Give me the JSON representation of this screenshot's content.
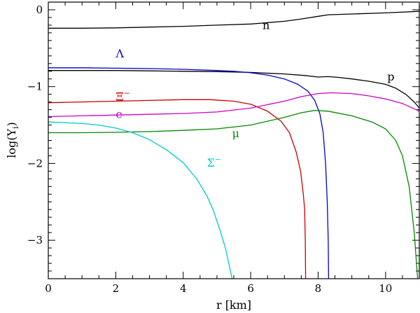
{
  "chart_data": {
    "type": "line",
    "title": "",
    "xlabel": "r [km]",
    "ylabel": "log(Y",
    "ylabel_sub": "i",
    "ylabel_close": ")",
    "xlim": [
      0,
      11
    ],
    "ylim": [
      -3.5,
      0.1
    ],
    "grid": false,
    "x_ticks_major": [
      0,
      2,
      4,
      6,
      8,
      10
    ],
    "x_tick_labels": [
      "0",
      "2",
      "4",
      "6",
      "8",
      "10"
    ],
    "x_ticks_minor_step": 0.5,
    "y_ticks_major": [
      0,
      -1,
      -2,
      -3
    ],
    "y_tick_labels": [
      "0",
      "−1",
      "−2",
      "−3"
    ],
    "y_ticks_minor_step": 0.1,
    "series": [
      {
        "name": "n",
        "color": "#000000",
        "label_at": [
          6.35,
          -0.25
        ],
        "points": [
          [
            0,
            -0.24
          ],
          [
            1,
            -0.24
          ],
          [
            2,
            -0.235
          ],
          [
            3,
            -0.225
          ],
          [
            4,
            -0.215
          ],
          [
            5,
            -0.2
          ],
          [
            6,
            -0.185
          ],
          [
            7,
            -0.15
          ],
          [
            7.5,
            -0.12
          ],
          [
            8,
            -0.085
          ],
          [
            8.3,
            -0.065
          ],
          [
            9,
            -0.055
          ],
          [
            10,
            -0.04
          ],
          [
            11,
            -0.02
          ]
        ]
      },
      {
        "name": "p",
        "color": "#000000",
        "label_at": [
          10.05,
          -0.92
        ],
        "points": [
          [
            0,
            -0.79
          ],
          [
            1,
            -0.79
          ],
          [
            2,
            -0.79
          ],
          [
            3,
            -0.795
          ],
          [
            4,
            -0.8
          ],
          [
            5,
            -0.805
          ],
          [
            6,
            -0.815
          ],
          [
            7,
            -0.835
          ],
          [
            7.6,
            -0.855
          ],
          [
            8,
            -0.875
          ],
          [
            8.3,
            -0.87
          ],
          [
            8.6,
            -0.88
          ],
          [
            9,
            -0.9
          ],
          [
            9.5,
            -0.93
          ],
          [
            10,
            -0.97
          ],
          [
            10.3,
            -1.02
          ],
          [
            10.6,
            -1.1
          ],
          [
            10.85,
            -1.2
          ],
          [
            11,
            -1.28
          ]
        ]
      },
      {
        "name": "Λ",
        "color": "#0000cc",
        "label_at": [
          2.0,
          -0.62
        ],
        "points": [
          [
            0,
            -0.755
          ],
          [
            1,
            -0.755
          ],
          [
            2,
            -0.76
          ],
          [
            3,
            -0.765
          ],
          [
            4,
            -0.775
          ],
          [
            5,
            -0.79
          ],
          [
            5.5,
            -0.8
          ],
          [
            6,
            -0.82
          ],
          [
            6.5,
            -0.85
          ],
          [
            7,
            -0.9
          ],
          [
            7.4,
            -0.97
          ],
          [
            7.7,
            -1.06
          ],
          [
            7.9,
            -1.18
          ],
          [
            8.05,
            -1.35
          ],
          [
            8.15,
            -1.6
          ],
          [
            8.22,
            -2.0
          ],
          [
            8.27,
            -2.5
          ],
          [
            8.3,
            -3.0
          ],
          [
            8.31,
            -3.5
          ]
        ]
      },
      {
        "name": "Ξ",
        "name_sup": "−",
        "color": "#cc0000",
        "label_at": [
          2.0,
          -1.18
        ],
        "points": [
          [
            0,
            -1.21
          ],
          [
            1,
            -1.2
          ],
          [
            2,
            -1.19
          ],
          [
            3,
            -1.18
          ],
          [
            4,
            -1.17
          ],
          [
            4.8,
            -1.17
          ],
          [
            5.5,
            -1.19
          ],
          [
            6,
            -1.23
          ],
          [
            6.5,
            -1.32
          ],
          [
            6.9,
            -1.45
          ],
          [
            7.15,
            -1.6
          ],
          [
            7.35,
            -1.85
          ],
          [
            7.48,
            -2.1
          ],
          [
            7.56,
            -2.4
          ],
          [
            7.6,
            -2.6
          ],
          [
            7.62,
            -3.0
          ],
          [
            7.63,
            -3.5
          ]
        ]
      },
      {
        "name": "e",
        "color": "#cc00cc",
        "label_at": [
          2.0,
          -1.41
        ],
        "points": [
          [
            0,
            -1.39
          ],
          [
            1,
            -1.38
          ],
          [
            2,
            -1.37
          ],
          [
            3,
            -1.36
          ],
          [
            4,
            -1.35
          ],
          [
            5,
            -1.33
          ],
          [
            6,
            -1.28
          ],
          [
            7,
            -1.19
          ],
          [
            7.5,
            -1.13
          ],
          [
            8,
            -1.09
          ],
          [
            8.4,
            -1.08
          ],
          [
            9,
            -1.09
          ],
          [
            9.5,
            -1.12
          ],
          [
            10,
            -1.16
          ],
          [
            10.5,
            -1.22
          ],
          [
            11,
            -1.32
          ]
        ]
      },
      {
        "name": "μ",
        "color": "#008800",
        "label_at": [
          5.45,
          -1.66
        ],
        "points": [
          [
            0,
            -1.6
          ],
          [
            1,
            -1.6
          ],
          [
            2,
            -1.595
          ],
          [
            3,
            -1.585
          ],
          [
            4,
            -1.57
          ],
          [
            5,
            -1.55
          ],
          [
            6,
            -1.5
          ],
          [
            7,
            -1.4
          ],
          [
            7.5,
            -1.34
          ],
          [
            7.9,
            -1.31
          ],
          [
            8.3,
            -1.32
          ],
          [
            9,
            -1.38
          ],
          [
            9.6,
            -1.46
          ],
          [
            10,
            -1.55
          ],
          [
            10.3,
            -1.7
          ],
          [
            10.5,
            -1.9
          ],
          [
            10.7,
            -2.3
          ],
          [
            10.85,
            -2.9
          ],
          [
            10.95,
            -3.5
          ]
        ]
      },
      {
        "name": "Σ",
        "name_sup": "−",
        "color": "#00cccc",
        "label_at": [
          4.7,
          -2.04
        ],
        "points": [
          [
            0,
            -1.46
          ],
          [
            1,
            -1.48
          ],
          [
            1.5,
            -1.5
          ],
          [
            2,
            -1.54
          ],
          [
            2.5,
            -1.6
          ],
          [
            3,
            -1.69
          ],
          [
            3.5,
            -1.82
          ],
          [
            4,
            -1.99
          ],
          [
            4.4,
            -2.2
          ],
          [
            4.7,
            -2.42
          ],
          [
            4.9,
            -2.62
          ],
          [
            5.1,
            -2.88
          ],
          [
            5.25,
            -3.1
          ],
          [
            5.35,
            -3.3
          ],
          [
            5.45,
            -3.5
          ]
        ]
      }
    ]
  }
}
